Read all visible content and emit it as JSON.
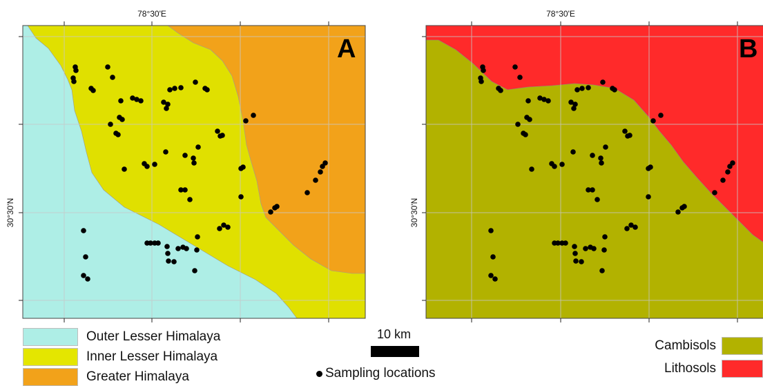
{
  "panel_a": {
    "label": "A",
    "lon_label": "78°30'E",
    "lat_label": "30°30'N"
  },
  "panel_b": {
    "label": "B",
    "lon_label": "78°30'E",
    "lat_label": "30°30'N"
  },
  "legend_left": {
    "items": [
      {
        "label": "Outer Lesser Himalaya",
        "color": "#aeeee6"
      },
      {
        "label": "Inner Lesser Himalaya",
        "color": "#e4e600"
      },
      {
        "label": "Greater Himalaya",
        "color": "#f2a21a"
      }
    ]
  },
  "legend_right": {
    "items": [
      {
        "label": "Cambisols",
        "color": "#b2b200"
      },
      {
        "label": "Lithosols",
        "color": "#ff2a2a"
      }
    ]
  },
  "scale": {
    "label": "10 km"
  },
  "sampling": {
    "label": "Sampling locations"
  }
}
